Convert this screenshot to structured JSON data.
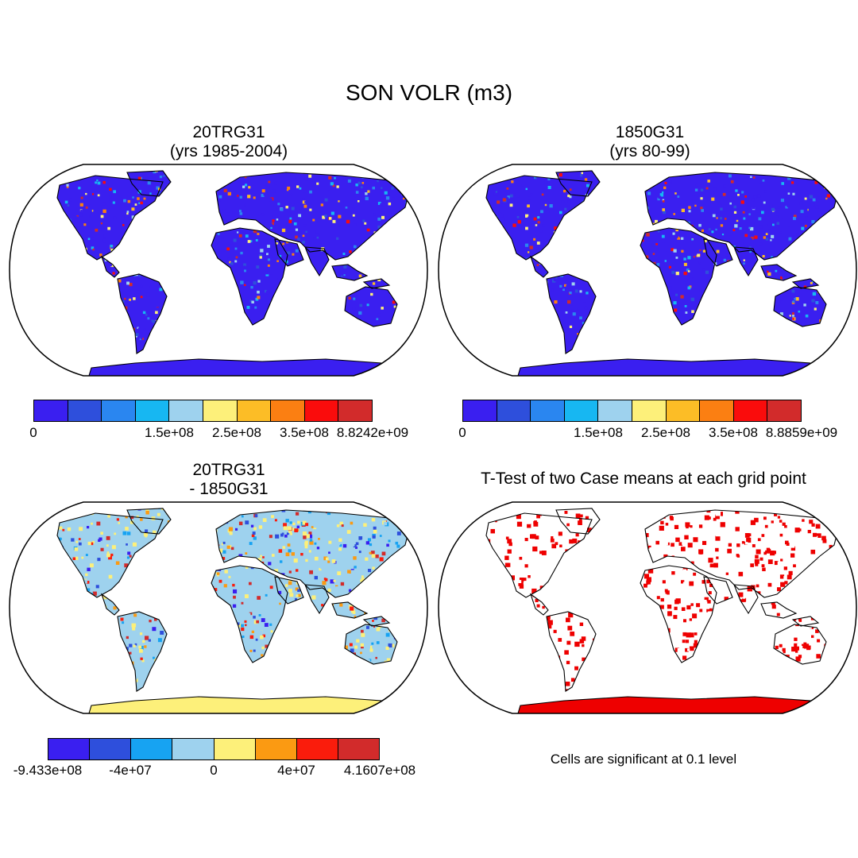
{
  "title": "SON VOLR (m3)",
  "panels": [
    {
      "title_line1": "20TRG31",
      "title_line2": "(yrs 1985-2004)",
      "colorbar": {
        "colors": [
          "#3a1ff0",
          "#2e4fdc",
          "#2a86f0",
          "#17b7f2",
          "#9ed2ee",
          "#fdf07a",
          "#fcbd26",
          "#fb7f12",
          "#fa0c0c",
          "#d22b2b"
        ],
        "labels": [
          "0",
          "1.5e+08",
          "2.5e+08",
          "3.5e+08",
          "8.8242e+09"
        ]
      }
    },
    {
      "title_line1": "1850G31",
      "title_line2": "(yrs 80-99)",
      "colorbar": {
        "colors": [
          "#3a1ff0",
          "#2e4fdc",
          "#2a86f0",
          "#17b7f2",
          "#9ed2ee",
          "#fdf07a",
          "#fcbd26",
          "#fb7f12",
          "#fa0c0c",
          "#d22b2b"
        ],
        "labels": [
          "0",
          "1.5e+08",
          "2.5e+08",
          "3.5e+08",
          "8.8859e+09"
        ]
      }
    },
    {
      "title_line1": "20TRG31",
      "title_line2": "- 1850G31",
      "colorbar": {
        "colors": [
          "#3a1ff0",
          "#2e4fdc",
          "#17a3f2",
          "#9ed2ee",
          "#fdf07a",
          "#fb9a12",
          "#fa1c0c",
          "#d22b2b"
        ],
        "labels": [
          "-9.433e+08",
          "-4e+07",
          "0",
          "4e+07",
          "4.1607e+08"
        ]
      }
    },
    {
      "title_line1": "T-Test of two Case means at each grid point",
      "note": "Cells are significant at 0.1 level",
      "color": "#ee0000"
    }
  ]
}
